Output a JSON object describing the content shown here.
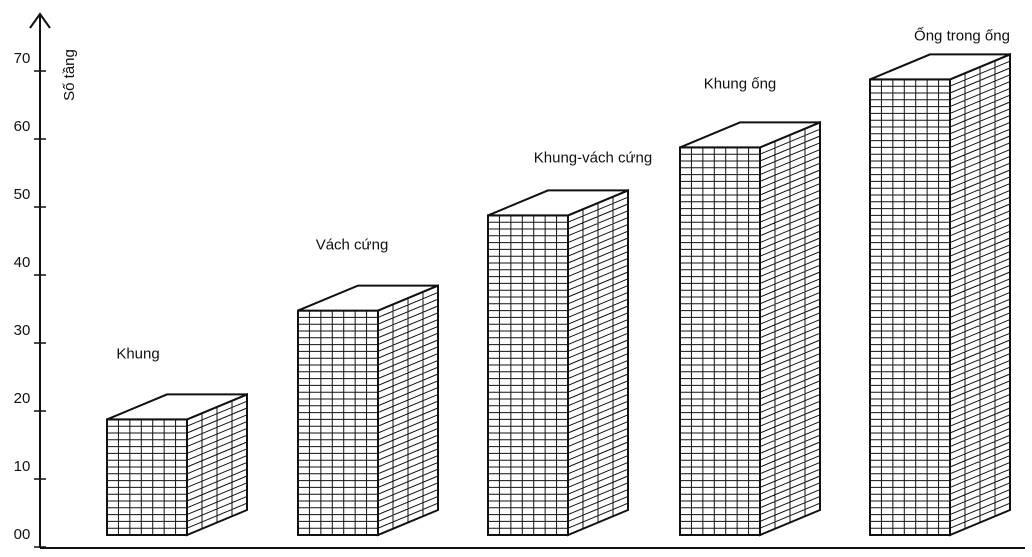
{
  "chart_data": {
    "type": "building-bar",
    "y_label": "Số tầng",
    "categories": [
      "Khung",
      "Vách cứng",
      "Khung-vách cứng",
      "Khung ống",
      "Ống trong ống"
    ],
    "values": [
      17,
      33,
      47,
      57,
      67
    ],
    "color": "#111111",
    "ylim": [
      0,
      75
    ],
    "yticks": [
      {
        "value": 0,
        "label": "00"
      },
      10,
      20,
      30,
      40,
      50,
      60,
      70
    ]
  }
}
